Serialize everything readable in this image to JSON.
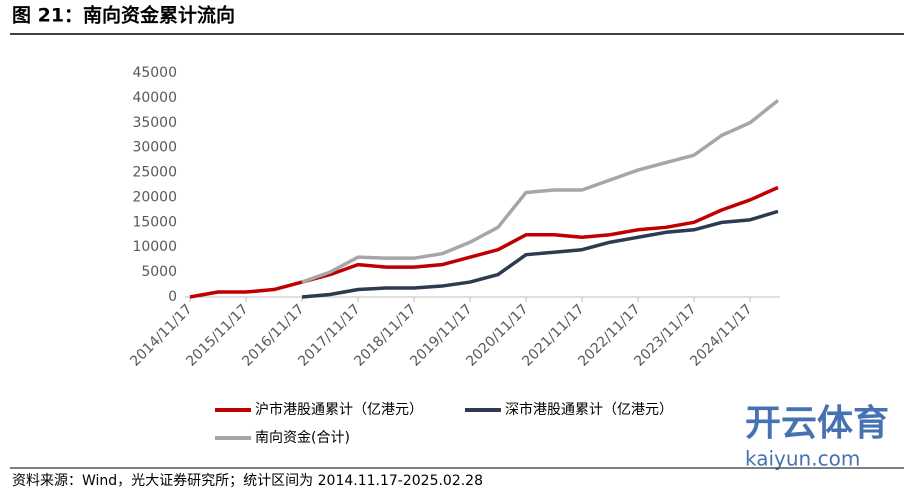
{
  "chart_data": {
    "type": "line",
    "title": "图 21：南向资金累计流向",
    "source": "资料来源：Wind，光大证券研究所；统计区间为 2014.11.17-2025.02.28",
    "categories": [
      "2014/11/17",
      null,
      "2015/11/17",
      null,
      "2016/11/17",
      null,
      "2017/11/17",
      null,
      "2018/11/17",
      null,
      "2019/11/17",
      null,
      "2020/11/17",
      null,
      "2021/11/17",
      null,
      "2022/11/17",
      null,
      "2023/11/17",
      null,
      "2024/11/17",
      null
    ],
    "series": [
      {
        "name": "沪市港股通累计（亿港元）",
        "color": "#c00000",
        "values": [
          0,
          1000,
          1000,
          1500,
          3000,
          4500,
          6500,
          6000,
          6000,
          6500,
          8000,
          9500,
          12500,
          12500,
          12000,
          12500,
          13500,
          14000,
          15000,
          17500,
          19500,
          22000
        ]
      },
      {
        "name": "深市港股通累计（亿港元）",
        "color": "#2e3a4f",
        "values": [
          null,
          null,
          null,
          null,
          0,
          500,
          1500,
          1800,
          1800,
          2200,
          3000,
          4500,
          8500,
          9000,
          9500,
          11000,
          12000,
          13000,
          13500,
          15000,
          15500,
          17200
        ]
      },
      {
        "name": "南向资金(合计)",
        "color": "#a6a6a6",
        "values": [
          null,
          null,
          null,
          null,
          3000,
          5000,
          8000,
          7800,
          7800,
          8700,
          11000,
          14000,
          21000,
          21500,
          21500,
          23500,
          25500,
          27000,
          28500,
          32500,
          35000,
          39500
        ]
      }
    ],
    "ylim": [
      0,
      45000
    ],
    "yticks": [
      0,
      5000,
      10000,
      15000,
      20000,
      25000,
      30000,
      35000,
      40000,
      45000
    ]
  },
  "watermark": {
    "brand": "开云体育",
    "site": "kaiyun.com"
  }
}
